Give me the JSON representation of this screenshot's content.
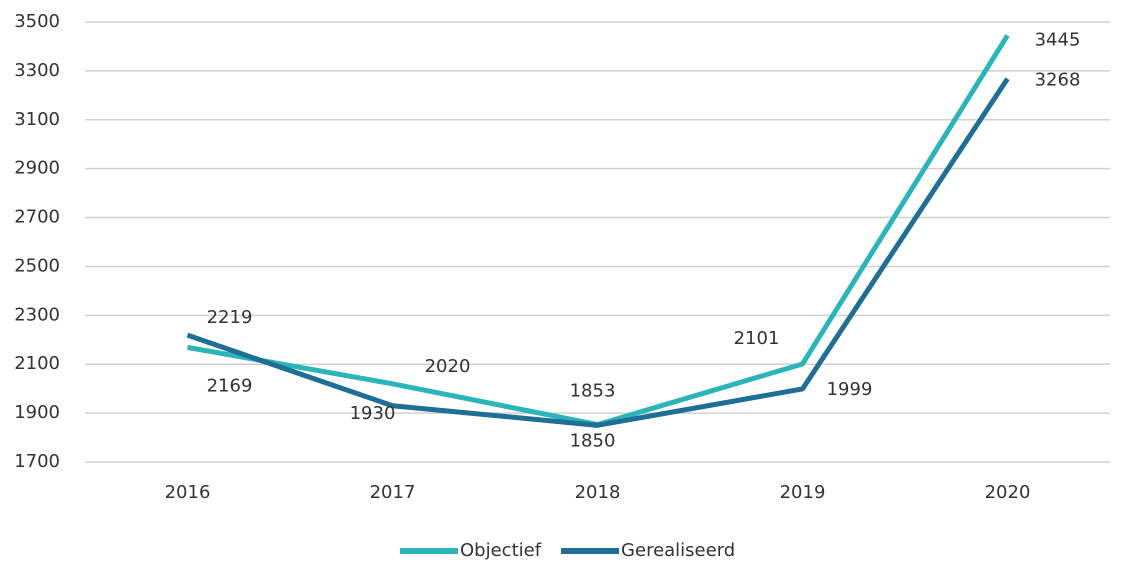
{
  "chart_data": {
    "type": "line",
    "categories": [
      "2016",
      "2017",
      "2018",
      "2019",
      "2020"
    ],
    "series": [
      {
        "name": "Objectief",
        "color": "#2bb5b8",
        "values": [
          2169,
          2020,
          1853,
          2101,
          3445
        ]
      },
      {
        "name": "Gerealiseerd",
        "color": "#1f6e96",
        "values": [
          2219,
          1930,
          1850,
          1999,
          3268
        ]
      }
    ],
    "ylim": [
      1700,
      3500
    ],
    "yticks": [
      1700,
      1900,
      2100,
      2300,
      2500,
      2700,
      2900,
      3100,
      3300,
      3500
    ],
    "grid": true,
    "legend": "bottom"
  }
}
